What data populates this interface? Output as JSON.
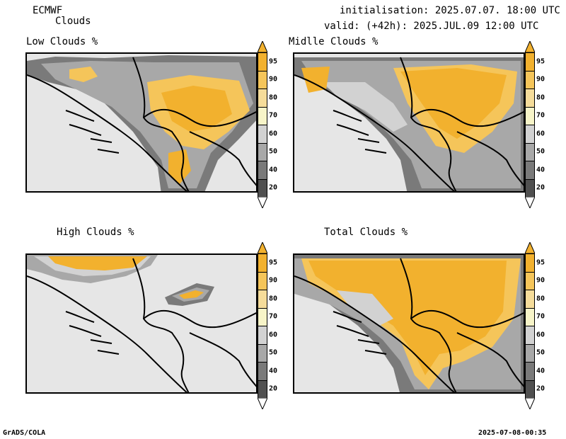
{
  "header": {
    "model": "ECMWF",
    "product": "Clouds",
    "init": "initialisation: 2025.07.07. 18:00 UTC",
    "valid": "valid: (+42h): 2025.JUL.09 12:00 UTC"
  },
  "panels": [
    {
      "id": "low",
      "title": "Low Clouds %"
    },
    {
      "id": "middle",
      "title": "Midlle Clouds %"
    },
    {
      "id": "high",
      "title": "High Clouds %"
    },
    {
      "id": "total",
      "title": "Total Clouds %"
    }
  ],
  "colorbar": {
    "levels": [
      "95",
      "90",
      "80",
      "70",
      "60",
      "50",
      "40",
      "20"
    ],
    "colors": [
      "#f2b12e",
      "#f5c55a",
      "#f5dc9a",
      "#f7f4c8",
      "#d2d2d2",
      "#a8a8a8",
      "#7a7a7a",
      "#505050"
    ],
    "over_color": "#f2b12e",
    "under_color": "#ffffff"
  },
  "footer": {
    "left": "GrADS/COLA",
    "right": "2025-07-08-00:35"
  }
}
